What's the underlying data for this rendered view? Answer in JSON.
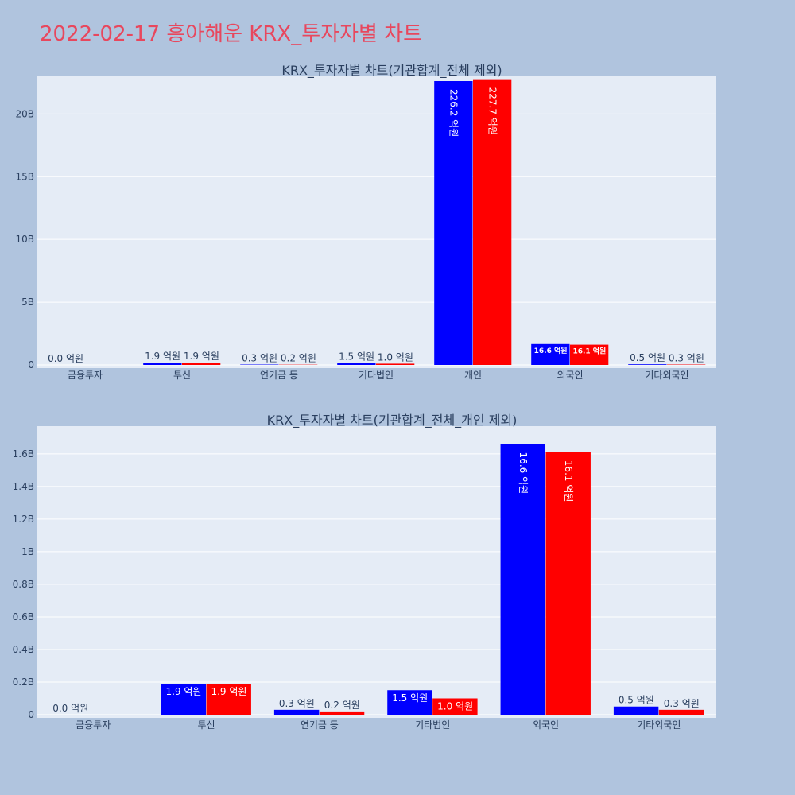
{
  "page": {
    "title": "2022-02-17 흥아해운 KRX_투자자별 차트",
    "title_color": "#e8475d",
    "background": "#b0c4de"
  },
  "chart_data": [
    {
      "type": "bar",
      "title": "KRX_투자자별 차트(기관합계_전체 제외)",
      "categories": [
        "금융투자",
        "투신",
        "연기금 등",
        "기타법인",
        "개인",
        "외국인",
        "기타외국인"
      ],
      "series": [
        {
          "color": "#0000ff",
          "values": [
            0,
            190000000,
            30000000,
            150000000,
            22620000000,
            1660000000,
            50000000
          ],
          "labels": [
            "0.0 억원",
            "1.9 억원",
            "0.3 억원",
            "1.5 억원",
            "226.2 억원",
            "16.6 억원",
            "0.5 억원"
          ]
        },
        {
          "color": "#ff0000",
          "values": [
            0,
            190000000,
            20000000,
            100000000,
            22770000000,
            1610000000,
            30000000
          ],
          "labels": [
            "",
            "1.9 억원",
            "0.2 억원",
            "1.0 억원",
            "227.7 억원",
            "16.1 억원",
            "0.3 억원"
          ]
        }
      ],
      "ylim": [
        0,
        23000000000
      ],
      "yticks": [
        0,
        5000000000,
        10000000000,
        15000000000,
        20000000000
      ],
      "ytick_labels": [
        "0",
        "5B",
        "10B",
        "15B",
        "20B"
      ],
      "grid": true,
      "plot_background": "#e5ecf6"
    },
    {
      "type": "bar",
      "title": "KRX_투자자별 차트(기관합계_전체_개인 제외)",
      "categories": [
        "금융투자",
        "투신",
        "연기금 등",
        "기타법인",
        "외국인",
        "기타외국인"
      ],
      "series": [
        {
          "color": "#0000ff",
          "values": [
            0,
            190000000,
            30000000,
            150000000,
            1660000000,
            50000000
          ],
          "labels": [
            "0.0 억원",
            "1.9 억원",
            "0.3 억원",
            "1.5 억원",
            "16.6 억원",
            "0.5 억원"
          ]
        },
        {
          "color": "#ff0000",
          "values": [
            0,
            190000000,
            20000000,
            100000000,
            1610000000,
            30000000
          ],
          "labels": [
            "",
            "1.9 억원",
            "0.2 억원",
            "1.0 억원",
            "16.1 억원",
            "0.3 억원"
          ]
        }
      ],
      "ylim": [
        0,
        1770000000
      ],
      "yticks": [
        0,
        200000000,
        400000000,
        600000000,
        800000000,
        1000000000,
        1200000000,
        1400000000,
        1600000000
      ],
      "ytick_labels": [
        "0",
        "0.2B",
        "0.4B",
        "0.6B",
        "0.8B",
        "1B",
        "1.2B",
        "1.4B",
        "1.6B"
      ],
      "grid": true,
      "plot_background": "#e5ecf6"
    }
  ]
}
